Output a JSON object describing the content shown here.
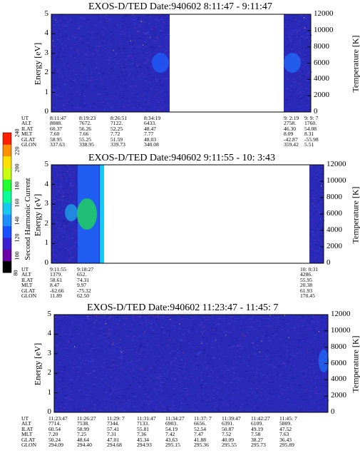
{
  "colors": {
    "background": "#1f1fb4",
    "colorbar": [
      "#000000",
      "#6a00a8",
      "#3b1fd0",
      "#1a50ff",
      "#1e8fff",
      "#19c8f0",
      "#0aff9a",
      "#20ff30",
      "#c8ff10",
      "#ffe000",
      "#ff9000",
      "#ff2000"
    ]
  },
  "colorbar": {
    "label": "Second Harmonic Current",
    "ticks": [
      "240",
      "220",
      "200",
      "180",
      "160",
      "140",
      "120",
      "100",
      "80"
    ]
  },
  "panels": [
    {
      "title": "EXOS-D/TED   Date:940602  8:11:47 - 9:11:47",
      "left_ticks": [
        "5",
        "4",
        "3",
        "2",
        "1",
        "0"
      ],
      "right_ticks": [
        "12000",
        "10000",
        "8000",
        "6000",
        "4000",
        "2000",
        "0"
      ],
      "ylabel": "Energy [eV]",
      "y2label": "Temperature [K]",
      "row_labels": [
        "UT",
        "ALT",
        "ILAT",
        "MLT",
        "GLAT",
        "GLON"
      ],
      "columns": [
        {
          "UT": "8:11:47",
          "ALT": "8088.",
          "ILAT": "60.37",
          "MLT": "7.60",
          "GLAT": "58.95",
          "GLON": "337.63"
        },
        {
          "UT": "8:19:23",
          "ALT": "7672.",
          "ILAT": "56.26",
          "MLT": "7.66",
          "GLAT": "55.25",
          "GLON": "338.95"
        },
        {
          "UT": "8:26:51",
          "ALT": "7122.",
          "ILAT": "52.25",
          "MLT": "7.72",
          "GLAT": "51.59",
          "GLON": "339.73"
        },
        {
          "UT": "8:34:19",
          "ALT": "6433.",
          "ILAT": "48.47",
          "MLT": "7.77",
          "GLAT": "48.03",
          "GLON": "340.08"
        },
        {
          "UT": "9: 2:19",
          "ALT": "2758.",
          "ILAT": "46.30",
          "MLT": "8.09",
          "GLAT": "-42.87",
          "GLON": "359.42"
        },
        {
          "UT": "9: 9: 7",
          "ALT": "1760.",
          "ILAT": "54.08",
          "MLT": "8.31",
          "GLAT": "-55.98",
          "GLON": "5.51"
        }
      ],
      "data_gap": "8:35 - 9:01",
      "features": "weak enhancement near 2.5 eV at 8:30 and 9:04"
    },
    {
      "title": "EXOS-D/TED   Date:940602  9:11:55 - 10: 3:43",
      "left_ticks": [
        "5",
        "4",
        "3",
        "2",
        "1",
        "0"
      ],
      "right_ticks": [
        "12000",
        "10000",
        "8000",
        "6000",
        "4000",
        "2000",
        "0"
      ],
      "ylabel": "Energy [eV]",
      "y2label": "Temperature [K]",
      "row_labels": [
        "UT",
        "ALT",
        "ILAT",
        "MLT",
        "GLAT",
        "GLON"
      ],
      "columns": [
        {
          "UT": "9:11:55",
          "ALT": "1379.",
          "ILAT": "58.61",
          "MLT": "8.47",
          "GLAT": "-62.66",
          "GLON": "11.89"
        },
        {
          "UT": "9:18:27",
          "ALT": "652.",
          "ILAT": "74.31",
          "MLT": "9.97",
          "GLAT": "-75.32",
          "GLON": "62.50"
        },
        {
          "UT": "10: 0:31",
          "ALT": "4286.",
          "ILAT": "55.95",
          "MLT": "20.38",
          "GLAT": "61.93",
          "GLON": "170.45"
        }
      ],
      "data_gap": "9:21 - 10:00",
      "features": "strong green/cyan enhancement 1.5-3 eV around 9:16-9:20"
    },
    {
      "title": "EXOS-D/TED   Date:940602  11:23:47 - 11:45: 7",
      "left_ticks": [
        "5",
        "4",
        "3",
        "2",
        "1",
        "0"
      ],
      "right_ticks": [
        "12000",
        "10000",
        "8000",
        "6000",
        "4000",
        "2000",
        "0"
      ],
      "ylabel": "Energy [eV]",
      "y2label": "Temperature [K]",
      "row_labels": [
        "UT",
        "ALT",
        "ILAT",
        "MLT",
        "GLAT",
        "GLON"
      ],
      "columns": [
        {
          "UT": "11:23:47",
          "ALT": "7714.",
          "ILAT": "60.54",
          "MLT": "7.20",
          "GLAT": "50.24",
          "GLON": "294.09"
        },
        {
          "UT": "11:26:27",
          "ALT": "7538.",
          "ILAT": "58.99",
          "MLT": "7.25",
          "GLAT": "48.64",
          "GLON": "294.40"
        },
        {
          "UT": "11:29: 7",
          "ALT": "7344.",
          "ILAT": "57.41",
          "MLT": "7.31",
          "GLAT": "47.01",
          "GLON": "294.68"
        },
        {
          "UT": "11:31:47",
          "ALT": "7133.",
          "ILAT": "55.81",
          "MLT": "7.36",
          "GLAT": "45.34",
          "GLON": "294.93"
        },
        {
          "UT": "11:34:27",
          "ALT": "6903.",
          "ILAT": "54.19",
          "MLT": "7.42",
          "GLAT": "43.63",
          "GLON": "295.15"
        },
        {
          "UT": "11:37: 7",
          "ALT": "6656.",
          "ILAT": "52.54",
          "MLT": "7.47",
          "GLAT": "41.88",
          "GLON": "295.36"
        },
        {
          "UT": "11:39:47",
          "ALT": "6391.",
          "ILAT": "50.87",
          "MLT": "7.52",
          "GLAT": "40.09",
          "GLON": "295.55"
        },
        {
          "UT": "11:42:27",
          "ALT": "6109.",
          "ILAT": "49.19",
          "MLT": "7.58",
          "GLAT": "38.27",
          "GLON": "295.73"
        },
        {
          "UT": "11:45: 7",
          "ALT": "5809.",
          "ILAT": "47.52",
          "MLT": "7.63",
          "GLAT": "36.43",
          "GLON": "295.89"
        }
      ],
      "features": "mostly uniform low values, weak enhancement near 2.5 eV at end"
    }
  ],
  "chart_data": [
    {
      "type": "heatmap",
      "title": "EXOS-D/TED   Date:940602  8:11:47 - 9:11:47",
      "xlabel": "UT",
      "ylabel": "Energy [eV]",
      "y2label": "Temperature [K]",
      "ylim": [
        0,
        5
      ],
      "y2lim": [
        0,
        12000
      ],
      "x_ticks": [
        "8:11:47",
        "8:19:23",
        "8:26:51",
        "8:34:19",
        "9: 2:19",
        "9: 9: 7"
      ],
      "colorbar_range": [
        80,
        240
      ],
      "colorbar_label": "Second Harmonic Current"
    },
    {
      "type": "heatmap",
      "title": "EXOS-D/TED   Date:940602  9:11:55 - 10: 3:43",
      "xlabel": "UT",
      "ylabel": "Energy [eV]",
      "y2label": "Temperature [K]",
      "ylim": [
        0,
        5
      ],
      "y2lim": [
        0,
        12000
      ],
      "x_ticks": [
        "9:11:55",
        "9:18:27",
        "10: 0:31"
      ],
      "colorbar_range": [
        80,
        240
      ]
    },
    {
      "type": "heatmap",
      "title": "EXOS-D/TED   Date:940602  11:23:47 - 11:45: 7",
      "xlabel": "UT",
      "ylabel": "Energy [eV]",
      "y2label": "Temperature [K]",
      "ylim": [
        0,
        5
      ],
      "y2lim": [
        0,
        12000
      ],
      "x_ticks": [
        "11:23:47",
        "11:26:27",
        "11:29: 7",
        "11:31:47",
        "11:34:27",
        "11:37: 7",
        "11:39:47",
        "11:42:27",
        "11:45: 7"
      ],
      "colorbar_range": [
        80,
        240
      ]
    }
  ]
}
